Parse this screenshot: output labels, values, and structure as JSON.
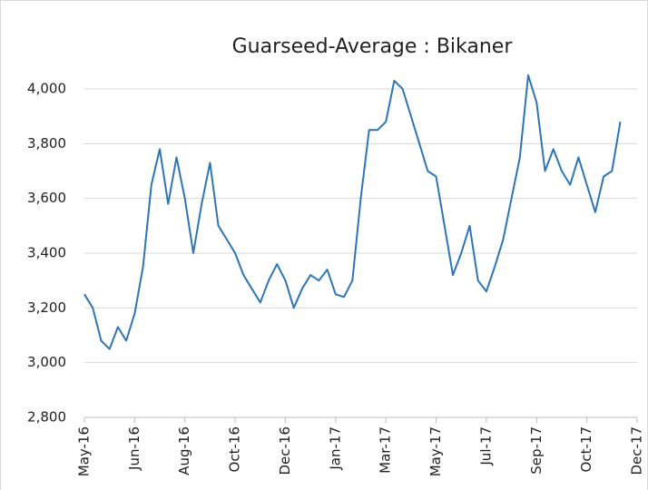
{
  "chart_data": {
    "type": "line",
    "title": "Guarseed-Average : Bikaner",
    "categories": [
      "May-16",
      null,
      null,
      null,
      null,
      null,
      "Jun-16",
      null,
      null,
      null,
      null,
      null,
      "Aug-16",
      null,
      null,
      null,
      null,
      null,
      "Oct-16",
      null,
      null,
      null,
      null,
      null,
      "Dec-16",
      null,
      null,
      null,
      null,
      null,
      "Jan-17",
      null,
      null,
      null,
      null,
      null,
      "Mar-17",
      null,
      null,
      null,
      null,
      null,
      "May-17",
      null,
      null,
      null,
      null,
      null,
      "Jul-17",
      null,
      null,
      null,
      null,
      null,
      "Sep-17",
      null,
      null,
      null,
      null,
      null,
      "Oct-17",
      null,
      null,
      null,
      null,
      null,
      "Dec-17"
    ],
    "series": [
      {
        "name": "Guarseed-Average",
        "color": "#2e75b6",
        "values": [
          3250,
          3200,
          3080,
          3050,
          3130,
          3080,
          3180,
          3350,
          3650,
          3780,
          3580,
          3750,
          3600,
          3400,
          3580,
          3730,
          3500,
          3450,
          3400,
          3320,
          3270,
          3220,
          3300,
          3360,
          3300,
          3200,
          3270,
          3320,
          3300,
          3340,
          3250,
          3240,
          3300,
          3600,
          3850,
          3850,
          3880,
          4030,
          4000,
          3900,
          3800,
          3700,
          3680,
          3500,
          3320,
          3400,
          3500,
          3300,
          3260,
          3350,
          3450,
          3600,
          3750,
          4050,
          3950,
          3700,
          3780,
          3700,
          3650,
          3750,
          3650,
          3550,
          3680,
          3700,
          3880,
          null,
          null
        ]
      }
    ],
    "ylim": [
      2800,
      4200
    ],
    "yticks": [
      {
        "value": 2800,
        "label": "2,800"
      },
      {
        "value": 3000,
        "label": "3,000"
      },
      {
        "value": 3200,
        "label": "3,200"
      },
      {
        "value": 3400,
        "label": "3,400"
      },
      {
        "value": 3600,
        "label": "3,600"
      },
      {
        "value": 3800,
        "label": "3,800"
      },
      {
        "value": 4000,
        "label": "4,000"
      }
    ],
    "grid": true
  }
}
